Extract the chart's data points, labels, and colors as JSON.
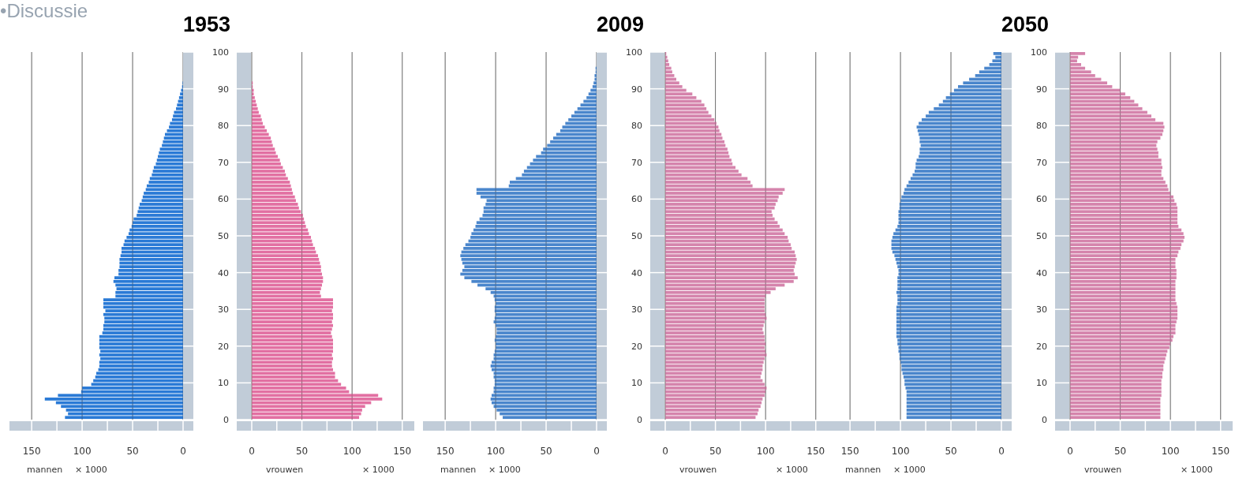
{
  "chart_data": [
    {
      "type": "bar",
      "orientation": "horizontal",
      "xlabel": "mannen",
      "annotations": [
        "•Discussie",
        "× 1000"
      ],
      "color": "#2a7ad6",
      "grid": "x",
      "tick_labels": "x",
      "xlim": [
        172,
        0
      ],
      "xticks": [
        150,
        {
          "value": 125,
          "label": null
        },
        100,
        {
          "value": 75,
          "label": null
        },
        50,
        {
          "value": 25,
          "label": null
        },
        0
      ],
      "ylim": [
        0,
        100
      ],
      "yticks": [
        0,
        10,
        20,
        30,
        40,
        50,
        60,
        70,
        80,
        90,
        100
      ],
      "x": [
        0,
        1,
        2,
        3,
        4,
        5,
        6,
        7,
        8,
        9,
        10,
        11,
        12,
        13,
        14,
        15,
        16,
        17,
        18,
        19,
        20,
        21,
        22,
        23,
        24,
        25,
        26,
        27,
        28,
        29,
        30,
        31,
        32,
        33,
        34,
        35,
        36,
        37,
        38,
        39,
        40,
        41,
        42,
        43,
        44,
        45,
        46,
        47,
        48,
        49,
        50,
        51,
        52,
        53,
        54,
        55,
        56,
        57,
        58,
        59,
        60,
        61,
        62,
        63,
        64,
        65,
        66,
        67,
        68,
        69,
        70,
        71,
        72,
        73,
        74,
        75,
        76,
        77,
        78,
        79,
        80,
        81,
        82,
        83,
        84,
        85,
        86,
        87,
        88,
        89,
        90,
        91,
        92,
        93,
        94,
        95,
        96,
        97,
        98,
        99
      ],
      "values": [
        117,
        114,
        116,
        121,
        126,
        137,
        124,
        101,
        100,
        91,
        89,
        87,
        86,
        84,
        83,
        83,
        82,
        83,
        82,
        83,
        83,
        83,
        83,
        80,
        79,
        79,
        78,
        78,
        79,
        77,
        79,
        79,
        79,
        67,
        67,
        66,
        67,
        69,
        68,
        64,
        64,
        63,
        63,
        63,
        62,
        61,
        61,
        59,
        58,
        56,
        54,
        53,
        51,
        50,
        49,
        46,
        45,
        44,
        43,
        41,
        40,
        39,
        37,
        36,
        34,
        33,
        31,
        30,
        29,
        27,
        26,
        25,
        24,
        23,
        21,
        20,
        19,
        18,
        16,
        14,
        13,
        11,
        10,
        9,
        7,
        6,
        5,
        4,
        3,
        2,
        1,
        0.5,
        0,
        0,
        0,
        0,
        0,
        0,
        0,
        0
      ]
    },
    {
      "type": "bar",
      "orientation": "horizontal",
      "title": "1953",
      "xlabel": "vrouwen",
      "annotations": [
        "× 1000"
      ],
      "color": "#e270a2",
      "grid": "x",
      "xlim": [
        0,
        162
      ],
      "xticks": [
        0,
        {
          "value": 25,
          "label": null
        },
        50,
        {
          "value": 75,
          "label": null
        },
        100,
        {
          "value": 125,
          "label": null
        },
        150
      ],
      "ylim": [
        0,
        100
      ],
      "yticks": [
        0,
        10,
        20,
        30,
        40,
        50,
        60,
        70,
        80,
        90,
        100
      ],
      "x": [
        0,
        1,
        2,
        3,
        4,
        5,
        6,
        7,
        8,
        9,
        10,
        11,
        12,
        13,
        14,
        15,
        16,
        17,
        18,
        19,
        20,
        21,
        22,
        23,
        24,
        25,
        26,
        27,
        28,
        29,
        30,
        31,
        32,
        33,
        34,
        35,
        36,
        37,
        38,
        39,
        40,
        41,
        42,
        43,
        44,
        45,
        46,
        47,
        48,
        49,
        50,
        51,
        52,
        53,
        54,
        55,
        56,
        57,
        58,
        59,
        60,
        61,
        62,
        63,
        64,
        65,
        66,
        67,
        68,
        69,
        70,
        71,
        72,
        73,
        74,
        75,
        76,
        77,
        78,
        79,
        80,
        81,
        82,
        83,
        84,
        85,
        86,
        87,
        88,
        89,
        90,
        91,
        92,
        93,
        94,
        95,
        96,
        97,
        98,
        99
      ],
      "values": [
        107,
        109,
        110,
        113,
        119,
        130,
        126,
        97,
        94,
        89,
        86,
        83,
        83,
        81,
        80,
        80,
        81,
        80,
        81,
        81,
        81,
        81,
        80,
        79,
        80,
        81,
        80,
        81,
        81,
        80,
        81,
        81,
        81,
        69,
        68,
        69,
        70,
        71,
        71,
        70,
        69,
        69,
        68,
        67,
        66,
        64,
        63,
        61,
        60,
        59,
        57,
        56,
        54,
        53,
        52,
        51,
        49,
        47,
        46,
        44,
        43,
        41,
        40,
        39,
        38,
        36,
        34,
        33,
        31,
        29,
        28,
        26,
        24,
        23,
        21,
        20,
        19,
        17,
        15,
        13,
        11,
        10,
        9,
        7,
        6,
        5,
        4,
        3,
        2,
        2,
        1,
        1,
        0,
        0,
        0,
        0,
        0,
        0,
        0,
        0
      ]
    },
    {
      "type": "bar",
      "orientation": "horizontal",
      "xlabel": "mannen",
      "annotations": [
        "× 1000"
      ],
      "color": "#4a86cc",
      "grid": "x",
      "tick_labels": "x",
      "xlim": [
        172,
        0
      ],
      "xticks": [
        150,
        {
          "value": 125,
          "label": null
        },
        100,
        {
          "value": 75,
          "label": null
        },
        50,
        {
          "value": 25,
          "label": null
        },
        0
      ],
      "ylim": [
        0,
        100
      ],
      "yticks": [
        0,
        10,
        20,
        30,
        40,
        50,
        60,
        70,
        80,
        90,
        100
      ],
      "x": [
        0,
        1,
        2,
        3,
        4,
        5,
        6,
        7,
        8,
        9,
        10,
        11,
        12,
        13,
        14,
        15,
        16,
        17,
        18,
        19,
        20,
        21,
        22,
        23,
        24,
        25,
        26,
        27,
        28,
        29,
        30,
        31,
        32,
        33,
        34,
        35,
        36,
        37,
        38,
        39,
        40,
        41,
        42,
        43,
        44,
        45,
        46,
        47,
        48,
        49,
        50,
        51,
        52,
        53,
        54,
        55,
        56,
        57,
        58,
        59,
        60,
        61,
        62,
        63,
        64,
        65,
        66,
        67,
        68,
        69,
        70,
        71,
        72,
        73,
        74,
        75,
        76,
        77,
        78,
        79,
        80,
        81,
        82,
        83,
        84,
        85,
        86,
        87,
        88,
        89,
        90,
        91,
        92,
        93,
        94,
        95,
        96,
        97,
        98,
        99
      ],
      "values": [
        93,
        96,
        99,
        102,
        104,
        105,
        104,
        102,
        102,
        101,
        101,
        102,
        102,
        104,
        105,
        104,
        102,
        102,
        101,
        100,
        100,
        101,
        100,
        99,
        99,
        100,
        102,
        101,
        100,
        101,
        101,
        100,
        101,
        102,
        105,
        110,
        118,
        124,
        131,
        135,
        133,
        131,
        133,
        134,
        135,
        134,
        132,
        130,
        127,
        125,
        124,
        122,
        120,
        119,
        116,
        113,
        112,
        112,
        110,
        109,
        115,
        119,
        119,
        87,
        86,
        80,
        74,
        72,
        69,
        66,
        63,
        60,
        55,
        53,
        49,
        46,
        43,
        40,
        36,
        34,
        31,
        28,
        25,
        22,
        19,
        16,
        13,
        10,
        8,
        6,
        4,
        3,
        2,
        2,
        1,
        1,
        0,
        0,
        0,
        0
      ]
    },
    {
      "type": "bar",
      "orientation": "horizontal",
      "title": "2009",
      "xlabel": "vrouwen",
      "annotations": [
        "× 1000"
      ],
      "color": "#d584ac",
      "grid": "x",
      "xlim": [
        0,
        162
      ],
      "xticks": [
        0,
        {
          "value": 25,
          "label": null
        },
        50,
        {
          "value": 75,
          "label": null
        },
        100,
        {
          "value": 125,
          "label": null
        },
        150
      ],
      "ylim": [
        0,
        100
      ],
      "yticks": [
        0,
        10,
        20,
        30,
        40,
        50,
        60,
        70,
        80,
        90,
        100
      ],
      "x": [
        0,
        1,
        2,
        3,
        4,
        5,
        6,
        7,
        8,
        9,
        10,
        11,
        12,
        13,
        14,
        15,
        16,
        17,
        18,
        19,
        20,
        21,
        22,
        23,
        24,
        25,
        26,
        27,
        28,
        29,
        30,
        31,
        32,
        33,
        34,
        35,
        36,
        37,
        38,
        39,
        40,
        41,
        42,
        43,
        44,
        45,
        46,
        47,
        48,
        49,
        50,
        51,
        52,
        53,
        54,
        55,
        56,
        57,
        58,
        59,
        60,
        61,
        62,
        63,
        64,
        65,
        66,
        67,
        68,
        69,
        70,
        71,
        72,
        73,
        74,
        75,
        76,
        77,
        78,
        79,
        80,
        81,
        82,
        83,
        84,
        85,
        86,
        87,
        88,
        89,
        90,
        91,
        92,
        93,
        94,
        95,
        96,
        97,
        98,
        99
      ],
      "values": [
        90,
        92,
        93,
        95,
        96,
        97,
        99,
        100,
        101,
        99,
        97,
        95,
        96,
        97,
        97,
        98,
        99,
        101,
        100,
        99,
        100,
        99,
        99,
        98,
        97,
        98,
        99,
        101,
        100,
        99,
        99,
        99,
        99,
        100,
        105,
        110,
        119,
        128,
        132,
        129,
        128,
        129,
        130,
        131,
        130,
        129,
        126,
        125,
        123,
        122,
        119,
        117,
        114,
        112,
        109,
        107,
        106,
        109,
        110,
        112,
        113,
        117,
        119,
        87,
        85,
        82,
        76,
        73,
        70,
        67,
        66,
        64,
        63,
        62,
        60,
        59,
        57,
        56,
        54,
        53,
        51,
        49,
        46,
        43,
        41,
        39,
        36,
        31,
        27,
        21,
        17,
        14,
        11,
        9,
        7,
        6,
        4,
        3,
        2,
        1
      ]
    },
    {
      "type": "bar",
      "orientation": "horizontal",
      "xlabel": "mannen",
      "annotations": [
        "× 1000"
      ],
      "color": "#4a86cc",
      "grid": "x",
      "tick_labels": "x",
      "xlim": [
        172,
        0
      ],
      "xticks": [
        150,
        {
          "value": 125,
          "label": null
        },
        100,
        {
          "value": 75,
          "label": null
        },
        50,
        {
          "value": 25,
          "label": null
        },
        0
      ],
      "ylim": [
        0,
        100
      ],
      "yticks": [
        0,
        10,
        20,
        30,
        40,
        50,
        60,
        70,
        80,
        90,
        100
      ],
      "x": [
        0,
        1,
        2,
        3,
        4,
        5,
        6,
        7,
        8,
        9,
        10,
        11,
        12,
        13,
        14,
        15,
        16,
        17,
        18,
        19,
        20,
        21,
        22,
        23,
        24,
        25,
        26,
        27,
        28,
        29,
        30,
        31,
        32,
        33,
        34,
        35,
        36,
        37,
        38,
        39,
        40,
        41,
        42,
        43,
        44,
        45,
        46,
        47,
        48,
        49,
        50,
        51,
        52,
        53,
        54,
        55,
        56,
        57,
        58,
        59,
        60,
        61,
        62,
        63,
        64,
        65,
        66,
        67,
        68,
        69,
        70,
        71,
        72,
        73,
        74,
        75,
        76,
        77,
        78,
        79,
        80,
        81,
        82,
        83,
        84,
        85,
        86,
        87,
        88,
        89,
        90,
        91,
        92,
        93,
        94,
        95,
        96,
        97,
        98,
        99
      ],
      "values": [
        94,
        94,
        94,
        94,
        94,
        94,
        94,
        94,
        95,
        96,
        96,
        97,
        98,
        99,
        99,
        100,
        101,
        101,
        102,
        102,
        103,
        103,
        104,
        104,
        104,
        104,
        104,
        104,
        104,
        104,
        104,
        103,
        103,
        103,
        104,
        103,
        103,
        103,
        103,
        102,
        102,
        103,
        104,
        105,
        106,
        108,
        109,
        109,
        109,
        108,
        107,
        105,
        103,
        102,
        102,
        102,
        102,
        101,
        101,
        100,
        99,
        97,
        96,
        94,
        92,
        90,
        88,
        86,
        85,
        85,
        84,
        82,
        81,
        81,
        80,
        81,
        81,
        82,
        83,
        84,
        82,
        79,
        75,
        72,
        67,
        62,
        58,
        55,
        51,
        47,
        43,
        38,
        32,
        26,
        22,
        17,
        12,
        9,
        6,
        8
      ]
    },
    {
      "type": "bar",
      "orientation": "horizontal",
      "title": "2050",
      "xlabel": "vrouwen",
      "annotations": [
        "× 1000"
      ],
      "color": "#d584ac",
      "grid": "x",
      "xlim": [
        0,
        162
      ],
      "xticks": [
        0,
        {
          "value": 25,
          "label": null
        },
        50,
        {
          "value": 75,
          "label": null
        },
        100,
        {
          "value": 125,
          "label": null
        },
        150
      ],
      "ylim": [
        0,
        100
      ],
      "yticks": [
        0,
        10,
        20,
        30,
        40,
        50,
        60,
        70,
        80,
        90,
        100
      ],
      "x": [
        0,
        1,
        2,
        3,
        4,
        5,
        6,
        7,
        8,
        9,
        10,
        11,
        12,
        13,
        14,
        15,
        16,
        17,
        18,
        19,
        20,
        21,
        22,
        23,
        24,
        25,
        26,
        27,
        28,
        29,
        30,
        31,
        32,
        33,
        34,
        35,
        36,
        37,
        38,
        39,
        40,
        41,
        42,
        43,
        44,
        45,
        46,
        47,
        48,
        49,
        50,
        51,
        52,
        53,
        54,
        55,
        56,
        57,
        58,
        59,
        60,
        61,
        62,
        63,
        64,
        65,
        66,
        67,
        68,
        69,
        70,
        71,
        72,
        73,
        74,
        75,
        76,
        77,
        78,
        79,
        80,
        81,
        82,
        83,
        84,
        85,
        86,
        87,
        88,
        89,
        90,
        91,
        92,
        93,
        94,
        95,
        96,
        97,
        98,
        99
      ],
      "values": [
        90,
        90,
        90,
        90,
        90,
        90,
        91,
        91,
        91,
        91,
        91,
        92,
        92,
        93,
        93,
        94,
        95,
        96,
        97,
        99,
        100,
        102,
        103,
        105,
        105,
        105,
        106,
        107,
        107,
        107,
        107,
        106,
        105,
        105,
        105,
        105,
        105,
        105,
        106,
        106,
        106,
        105,
        105,
        105,
        107,
        108,
        110,
        111,
        113,
        114,
        113,
        111,
        108,
        107,
        107,
        107,
        107,
        107,
        106,
        104,
        103,
        100,
        98,
        97,
        95,
        93,
        91,
        91,
        92,
        91,
        91,
        88,
        88,
        87,
        86,
        87,
        90,
        92,
        93,
        94,
        93,
        85,
        81,
        77,
        72,
        68,
        64,
        60,
        55,
        50,
        42,
        37,
        31,
        25,
        21,
        15,
        11,
        7,
        8,
        15
      ]
    }
  ]
}
